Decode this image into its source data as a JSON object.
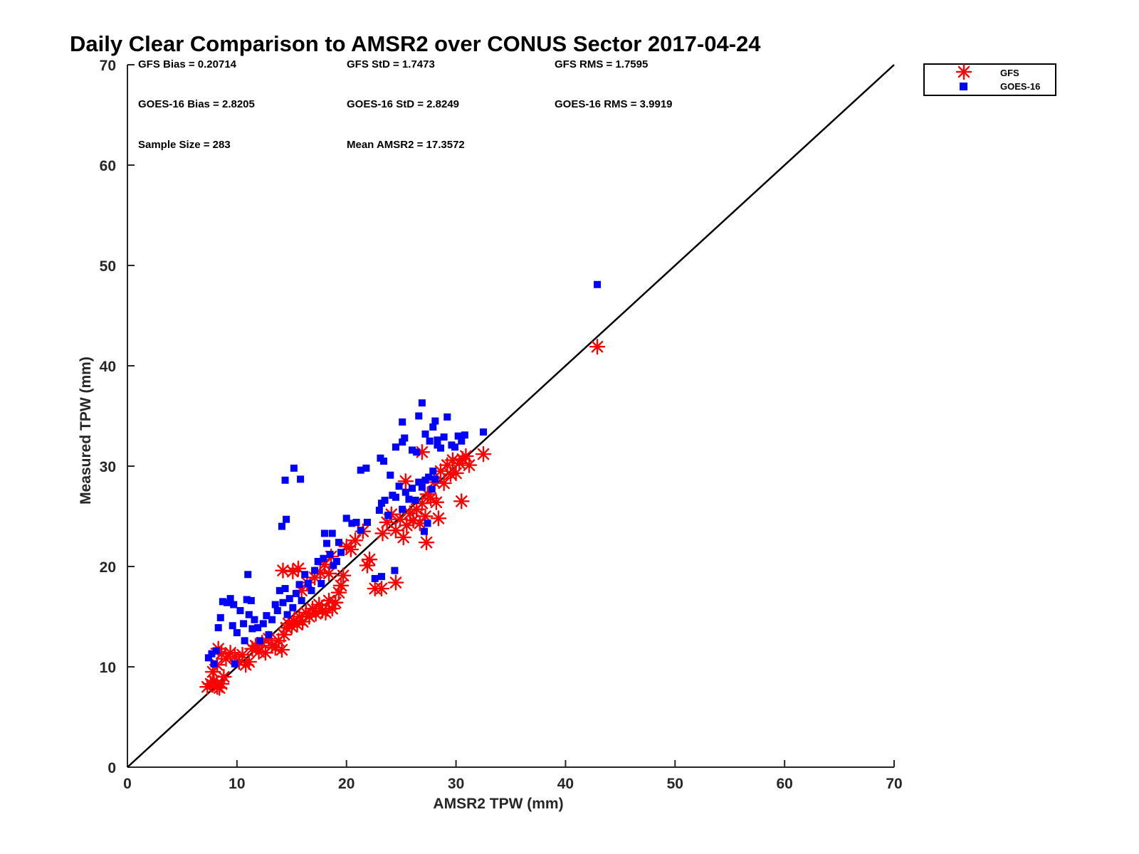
{
  "chart_data": {
    "type": "scatter",
    "title": "Daily Clear Comparison to AMSR2 over CONUS Sector 2017-04-24",
    "xlabel": "AMSR2 TPW (mm)",
    "ylabel": "Measured TPW (mm)",
    "xlim": [
      0,
      70
    ],
    "ylim": [
      0,
      70
    ],
    "xticks": [
      "0",
      "10",
      "20",
      "30",
      "40",
      "50",
      "60",
      "70"
    ],
    "yticks": [
      "0",
      "10",
      "20",
      "30",
      "40",
      "50",
      "60",
      "70"
    ],
    "grid": false,
    "legend_position": "outside-top-right",
    "reference_line": {
      "x": [
        0,
        70
      ],
      "y": [
        0,
        70
      ],
      "color": "#000000"
    },
    "stats": [
      "GFS Bias = 0.20714",
      "GFS StD = 1.7473",
      "GFS RMS = 1.7595",
      "GOES-16 Bias = 2.8205",
      "GOES-16 StD = 2.8249",
      "GOES-16 RMS = 3.9919",
      "Sample Size = 283",
      "Mean AMSR2 = 17.3572"
    ],
    "series": [
      {
        "name": "GFS",
        "marker": "asterisk",
        "color": "#ff0000",
        "points": [
          [
            7.3,
            8.0
          ],
          [
            7.6,
            8.3
          ],
          [
            7.9,
            8.6
          ],
          [
            8.2,
            8.0
          ],
          [
            8.4,
            7.9
          ],
          [
            8.6,
            8.3
          ],
          [
            8.8,
            9.0
          ],
          [
            7.8,
            9.5
          ],
          [
            8.2,
            10.2
          ],
          [
            8.6,
            11.3
          ],
          [
            8.3,
            11.8
          ],
          [
            9.0,
            10.8
          ],
          [
            9.4,
            11.4
          ],
          [
            9.8,
            11.0
          ],
          [
            10.2,
            10.5
          ],
          [
            10.5,
            11.2
          ],
          [
            10.8,
            10.2
          ],
          [
            11.1,
            10.5
          ],
          [
            11.4,
            11.8
          ],
          [
            11.7,
            12.1
          ],
          [
            12.0,
            11.5
          ],
          [
            12.3,
            12.4
          ],
          [
            12.6,
            11.4
          ],
          [
            12.9,
            12.8
          ],
          [
            13.2,
            12.1
          ],
          [
            13.5,
            11.9
          ],
          [
            13.8,
            12.6
          ],
          [
            14.1,
            11.7
          ],
          [
            14.3,
            13.2
          ],
          [
            14.5,
            13.9
          ],
          [
            14.7,
            14.3
          ],
          [
            15.0,
            14.0
          ],
          [
            15.2,
            14.6
          ],
          [
            15.5,
            14.2
          ],
          [
            15.7,
            15.0
          ],
          [
            16.0,
            14.5
          ],
          [
            16.3,
            15.4
          ],
          [
            16.6,
            15.0
          ],
          [
            16.9,
            15.8
          ],
          [
            17.2,
            15.3
          ],
          [
            17.5,
            16.2
          ],
          [
            17.8,
            15.6
          ],
          [
            18.1,
            15.4
          ],
          [
            18.4,
            16.6
          ],
          [
            18.7,
            15.8
          ],
          [
            19.0,
            16.4
          ],
          [
            19.3,
            17.4
          ],
          [
            19.5,
            18.1
          ],
          [
            19.7,
            19.1
          ],
          [
            18.4,
            19.3
          ],
          [
            18.0,
            20.2
          ],
          [
            18.6,
            21.0
          ],
          [
            14.2,
            19.6
          ],
          [
            15.1,
            19.5
          ],
          [
            15.6,
            19.8
          ],
          [
            15.9,
            17.6
          ],
          [
            16.4,
            18.4
          ],
          [
            17.1,
            18.9
          ],
          [
            17.6,
            19.4
          ],
          [
            20.0,
            22.0
          ],
          [
            20.4,
            21.7
          ],
          [
            20.8,
            22.6
          ],
          [
            21.5,
            23.5
          ],
          [
            21.9,
            20.1
          ],
          [
            22.1,
            20.7
          ],
          [
            22.6,
            17.8
          ],
          [
            23.2,
            17.8
          ],
          [
            24.5,
            18.4
          ],
          [
            23.3,
            23.3
          ],
          [
            23.7,
            24.4
          ],
          [
            24.1,
            25.2
          ],
          [
            24.5,
            23.6
          ],
          [
            24.9,
            24.7
          ],
          [
            25.2,
            22.9
          ],
          [
            25.5,
            24.1
          ],
          [
            25.4,
            28.5
          ],
          [
            25.8,
            25.3
          ],
          [
            26.1,
            24.6
          ],
          [
            26.4,
            25.7
          ],
          [
            26.7,
            24.3
          ],
          [
            26.9,
            26.3
          ],
          [
            27.2,
            25.0
          ],
          [
            27.4,
            27.2
          ],
          [
            27.3,
            22.4
          ],
          [
            27.7,
            26.8
          ],
          [
            28.0,
            28.4
          ],
          [
            28.2,
            26.4
          ],
          [
            28.4,
            24.8
          ],
          [
            28.6,
            29.5
          ],
          [
            28.9,
            28.3
          ],
          [
            29.2,
            30.1
          ],
          [
            29.5,
            29.2
          ],
          [
            29.7,
            30.6
          ],
          [
            30.0,
            29.3
          ],
          [
            30.3,
            30.3
          ],
          [
            30.6,
            30.7
          ],
          [
            30.9,
            31.0
          ],
          [
            31.2,
            30.1
          ],
          [
            32.5,
            31.2
          ],
          [
            30.5,
            26.5
          ],
          [
            26.9,
            31.4
          ],
          [
            42.9,
            41.9
          ]
        ]
      },
      {
        "name": "GOES-16",
        "marker": "square",
        "color": "#0000ff",
        "points": [
          [
            7.4,
            10.9
          ],
          [
            7.7,
            11.3
          ],
          [
            7.9,
            10.3
          ],
          [
            8.1,
            11.6
          ],
          [
            8.3,
            13.9
          ],
          [
            8.5,
            14.9
          ],
          [
            8.7,
            16.5
          ],
          [
            9.1,
            16.4
          ],
          [
            9.4,
            16.8
          ],
          [
            9.7,
            16.2
          ],
          [
            9.6,
            14.1
          ],
          [
            10.0,
            13.4
          ],
          [
            10.3,
            15.6
          ],
          [
            10.6,
            14.3
          ],
          [
            10.9,
            16.7
          ],
          [
            11.1,
            15.2
          ],
          [
            11.3,
            16.6
          ],
          [
            11.4,
            13.8
          ],
          [
            11.6,
            14.7
          ],
          [
            11.9,
            13.9
          ],
          [
            12.1,
            12.6
          ],
          [
            12.4,
            14.3
          ],
          [
            12.7,
            15.1
          ],
          [
            12.9,
            13.2
          ],
          [
            13.2,
            14.7
          ],
          [
            13.5,
            16.2
          ],
          [
            13.7,
            15.6
          ],
          [
            13.9,
            17.6
          ],
          [
            14.2,
            16.4
          ],
          [
            14.4,
            17.8
          ],
          [
            14.6,
            15.2
          ],
          [
            14.8,
            16.8
          ],
          [
            15.1,
            15.9
          ],
          [
            15.4,
            17.3
          ],
          [
            15.7,
            18.2
          ],
          [
            15.9,
            16.6
          ],
          [
            16.2,
            19.2
          ],
          [
            16.5,
            18.3
          ],
          [
            16.8,
            17.6
          ],
          [
            17.1,
            19.6
          ],
          [
            17.4,
            20.5
          ],
          [
            17.7,
            18.3
          ],
          [
            17.9,
            20.8
          ],
          [
            18.2,
            22.3
          ],
          [
            18.5,
            21.2
          ],
          [
            18.8,
            20.1
          ],
          [
            19.1,
            20.5
          ],
          [
            19.3,
            22.4
          ],
          [
            19.5,
            21.4
          ],
          [
            18.0,
            23.3
          ],
          [
            18.7,
            23.3
          ],
          [
            11.0,
            19.2
          ],
          [
            10.7,
            12.6
          ],
          [
            9.8,
            10.3
          ],
          [
            14.1,
            24.0
          ],
          [
            14.5,
            24.7
          ],
          [
            14.4,
            28.6
          ],
          [
            15.2,
            29.8
          ],
          [
            15.8,
            28.7
          ],
          [
            20.0,
            24.8
          ],
          [
            20.5,
            24.3
          ],
          [
            20.9,
            24.4
          ],
          [
            21.3,
            23.6
          ],
          [
            21.9,
            24.4
          ],
          [
            21.3,
            29.6
          ],
          [
            21.8,
            29.8
          ],
          [
            22.6,
            18.8
          ],
          [
            23.2,
            19.0
          ],
          [
            24.4,
            19.6
          ],
          [
            23.0,
            25.6
          ],
          [
            23.2,
            26.3
          ],
          [
            23.5,
            26.6
          ],
          [
            23.8,
            25.1
          ],
          [
            24.2,
            27.1
          ],
          [
            24.5,
            26.9
          ],
          [
            24.8,
            28.0
          ],
          [
            25.1,
            25.7
          ],
          [
            25.4,
            27.4
          ],
          [
            25.7,
            26.7
          ],
          [
            26.0,
            27.8
          ],
          [
            26.3,
            26.6
          ],
          [
            26.6,
            28.4
          ],
          [
            26.9,
            27.9
          ],
          [
            27.2,
            28.6
          ],
          [
            27.5,
            28.9
          ],
          [
            27.1,
            23.5
          ],
          [
            27.4,
            24.3
          ],
          [
            27.8,
            27.7
          ],
          [
            28.1,
            28.7
          ],
          [
            23.1,
            30.8
          ],
          [
            23.4,
            30.5
          ],
          [
            24.0,
            29.1
          ],
          [
            24.5,
            31.9
          ],
          [
            25.1,
            32.4
          ],
          [
            25.3,
            32.8
          ],
          [
            25.1,
            34.4
          ],
          [
            26.0,
            31.6
          ],
          [
            26.4,
            31.4
          ],
          [
            26.6,
            35.0
          ],
          [
            26.9,
            36.3
          ],
          [
            27.2,
            33.2
          ],
          [
            27.6,
            32.5
          ],
          [
            27.9,
            33.9
          ],
          [
            28.1,
            34.5
          ],
          [
            28.3,
            32.1
          ],
          [
            28.6,
            31.8
          ],
          [
            28.9,
            32.9
          ],
          [
            29.2,
            34.9
          ],
          [
            29.6,
            32.1
          ],
          [
            29.9,
            31.9
          ],
          [
            30.2,
            33.0
          ],
          [
            30.5,
            32.5
          ],
          [
            30.8,
            33.1
          ],
          [
            32.5,
            33.4
          ],
          [
            27.9,
            29.5
          ],
          [
            28.3,
            32.6
          ],
          [
            42.9,
            48.1
          ]
        ]
      }
    ]
  }
}
